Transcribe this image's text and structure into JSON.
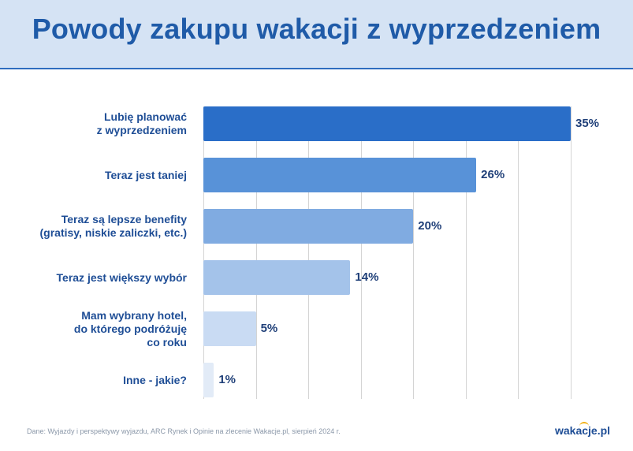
{
  "header": {
    "title": "Powody zakupu wakacji z wyprzedzeniem"
  },
  "colors": [
    "#2a6ec8",
    "#5892d8",
    "#80abe1",
    "#a4c3ea",
    "#c9dbf3",
    "#e2ebf7"
  ],
  "chart_data": {
    "type": "bar",
    "orientation": "horizontal",
    "categories": [
      "Lubię planować\nz wyprzedzeniem",
      "Teraz jest taniej",
      "Teraz są lepsze benefity\n(gratisy, niskie zaliczki, etc.)",
      "Teraz jest większy wybór",
      "Mam wybrany hotel,\ndo którego podróżuję\nco roku",
      "Inne - jakie?"
    ],
    "values": [
      35,
      26,
      20,
      14,
      5,
      1
    ],
    "value_labels": [
      "35%",
      "26%",
      "20%",
      "14%",
      "5%",
      "1%"
    ],
    "xlim": [
      0,
      35
    ],
    "grid": true
  },
  "footer": {
    "source": "Dane: Wyjazdy i perspektywy wyjazdu, ARC Rynek i Opinie na zlecenie Wakacje.pl, sierpień 2024 r.",
    "logo_text": "wakacje.pl"
  }
}
